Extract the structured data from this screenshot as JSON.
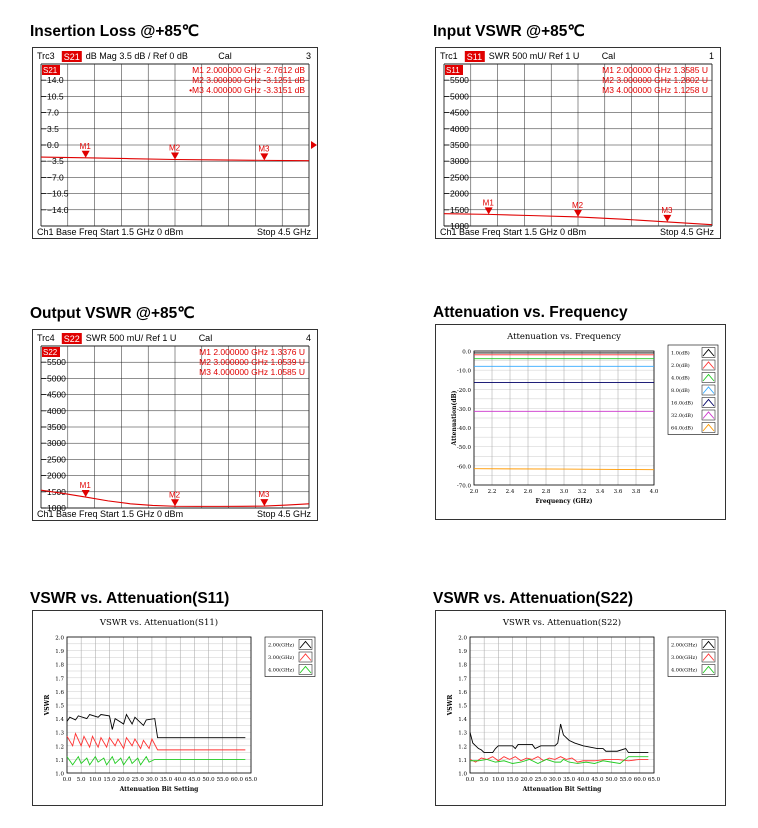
{
  "colors": {
    "trace": "#e00000",
    "grid": "#000000",
    "frame": "#333333"
  },
  "vna_panels": [
    {
      "title": "Insertion Loss @+85℃",
      "trc": "Trc3",
      "param": "S21",
      "scale": "dB Mag  3.5 dB / Ref 0 dB",
      "cal": "Cal",
      "ch_num": "3",
      "tag": "S21",
      "yticks": [
        "14.0",
        "10.5",
        "7.0",
        "3.5",
        "0.0",
        "−3.5",
        "−7.0",
        "−10.5",
        "−14.0"
      ],
      "footer_left": "Ch1  Base Freq  Start  1.5 GHz   0 dBm",
      "footer_right": "Stop  4.5 GHz",
      "markers": [
        {
          "label": "M1",
          "readout": "M1  2.000000  GHz  -2.7612  dB",
          "x_ghz": 2.0,
          "y_value": -2.76
        },
        {
          "label": "M2",
          "readout": "M2  3.000000  GHz  -3.1251  dB",
          "x_ghz": 3.0,
          "y_value": -3.13
        },
        {
          "label": "M3",
          "readout": "•M3  4.000000  GHz  -3.3151  dB",
          "x_ghz": 4.0,
          "y_value": -3.32
        }
      ]
    },
    {
      "title": "Input VSWR @+85℃",
      "trc": "Trc1",
      "param": "S11",
      "scale": "SWR  500 mU/  Ref 1 U",
      "cal": "Cal",
      "ch_num": "1",
      "tag": "S11",
      "yticks": [
        "5500",
        "5000",
        "4500",
        "4000",
        "3500",
        "3000",
        "2500",
        "2000",
        "1500",
        "1000"
      ],
      "footer_left": "Ch1  Base Freq  Start  1.5 GHz   0 dBm",
      "footer_right": "Stop  4.5 GHz",
      "markers": [
        {
          "label": "M1",
          "readout": "M1  2.000000  GHz   1.3585  U",
          "x_ghz": 2.0,
          "y_value": 1.3585
        },
        {
          "label": "M2",
          "readout": "M2  3.000000  GHz   1.2802  U",
          "x_ghz": 3.0,
          "y_value": 1.2802
        },
        {
          "label": "M3",
          "readout": "M3  4.000000  GHz   1.1258  U",
          "x_ghz": 4.0,
          "y_value": 1.1258
        }
      ]
    },
    {
      "title": "Output VSWR @+85℃",
      "trc": "Trc4",
      "param": "S22",
      "scale": "SWR  500 mU/  Ref 1 U",
      "cal": "Cal",
      "ch_num": "4",
      "tag": "S22",
      "yticks": [
        "5500",
        "5000",
        "4500",
        "4000",
        "3500",
        "3000",
        "2500",
        "2000",
        "1500",
        "1000"
      ],
      "footer_left": "Ch1  Base Freq  Start  1.5 GHz   0 dBm",
      "footer_right": "Stop  4.5 GHz",
      "markers": [
        {
          "label": "M1",
          "readout": "M1  2.000000  GHz   1.3376  U",
          "x_ghz": 2.0,
          "y_value": 1.3376
        },
        {
          "label": "M2",
          "readout": "M2  3.000000  GHz   1.0539  U",
          "x_ghz": 3.0,
          "y_value": 1.0539
        },
        {
          "label": "M3",
          "readout": "M3  4.000000  GHz   1.0585  U",
          "x_ghz": 4.0,
          "y_value": 1.0585
        }
      ]
    }
  ],
  "chart_data": [
    {
      "type": "line",
      "title": "Insertion Loss @+85℃",
      "xlim": [
        1.5,
        4.5
      ],
      "ylim": [
        -17.5,
        17.5
      ],
      "series": [
        {
          "name": "S21",
          "x": [
            1.5,
            2.0,
            2.5,
            3.0,
            3.5,
            4.0,
            4.5
          ],
          "values": [
            -2.6,
            -2.76,
            -2.95,
            -3.13,
            -3.22,
            -3.32,
            -3.4
          ]
        }
      ]
    },
    {
      "type": "line",
      "title": "Input VSWR @+85℃",
      "xlim": [
        1.5,
        4.5
      ],
      "ylim": [
        1.0,
        6.0
      ],
      "series": [
        {
          "name": "S11",
          "x": [
            1.5,
            2.0,
            2.5,
            3.0,
            3.5,
            4.0,
            4.5
          ],
          "values": [
            1.38,
            1.3585,
            1.32,
            1.2802,
            1.21,
            1.1258,
            1.04
          ]
        }
      ]
    },
    {
      "type": "line",
      "title": "Output VSWR @+85℃",
      "xlim": [
        1.5,
        4.5
      ],
      "ylim": [
        1.0,
        6.0
      ],
      "series": [
        {
          "name": "S22",
          "x": [
            1.5,
            1.75,
            2.0,
            2.25,
            2.5,
            2.75,
            3.0,
            3.25,
            3.5,
            3.75,
            4.0,
            4.25,
            4.5
          ],
          "values": [
            1.55,
            1.45,
            1.3376,
            1.22,
            1.13,
            1.08,
            1.0539,
            1.05,
            1.05,
            1.052,
            1.0585,
            1.09,
            1.13
          ]
        }
      ]
    },
    {
      "type": "line",
      "title": "Attenuation vs. Frequency",
      "section_title": "Attenuation vs. Frequency",
      "xlabel": "Frequency (GHz)",
      "ylabel": "Attenuation(dB)",
      "xlim": [
        2.0,
        4.0
      ],
      "ylim": [
        -70.0,
        0.0
      ],
      "xticks": [
        "2.0",
        "2.2",
        "2.4",
        "2.6",
        "2.8",
        "3.0",
        "3.2",
        "3.4",
        "3.6",
        "3.8",
        "4.0"
      ],
      "yticks": [
        "0.0",
        "-10.0",
        "-20.0",
        "-30.0",
        "-40.0",
        "-50.0",
        "-60.0",
        "-70.0"
      ],
      "series": [
        {
          "name": "1.0(dB)",
          "color": "#000000",
          "x": [
            2.0,
            3.0,
            4.0
          ],
          "values": [
            -1.0,
            -1.0,
            -1.0
          ]
        },
        {
          "name": "2.0(dB)",
          "color": "#ff3333",
          "x": [
            2.0,
            3.0,
            4.0
          ],
          "values": [
            -2.0,
            -2.0,
            -2.0
          ]
        },
        {
          "name": "4.0(dB)",
          "color": "#22cc22",
          "x": [
            2.0,
            3.0,
            4.0
          ],
          "values": [
            -4.0,
            -4.0,
            -4.0
          ]
        },
        {
          "name": "8.0(dB)",
          "color": "#33aaff",
          "x": [
            2.0,
            3.0,
            4.0
          ],
          "values": [
            -8.0,
            -8.0,
            -8.0
          ]
        },
        {
          "name": "16.0(dB)",
          "color": "#000066",
          "x": [
            2.0,
            3.0,
            4.0
          ],
          "values": [
            -16.5,
            -16.5,
            -16.5
          ]
        },
        {
          "name": "32.0(dB)",
          "color": "#cc33cc",
          "x": [
            2.0,
            3.0,
            4.0
          ],
          "values": [
            -31.5,
            -31.5,
            -31.5
          ]
        },
        {
          "name": "64.0(dB)",
          "color": "#ff9900",
          "x": [
            2.0,
            3.0,
            4.0
          ],
          "values": [
            -61.5,
            -61.7,
            -62.0
          ]
        }
      ]
    },
    {
      "type": "line",
      "title": "VSWR vs. Attenuation(S11)",
      "section_title": "VSWR vs. Attenuation(S11)",
      "xlabel": "Attenuation Bit Setting",
      "ylabel": "VSWR",
      "xlim": [
        0,
        65
      ],
      "ylim": [
        1.0,
        2.0
      ],
      "xticks": [
        "0.0",
        "5.0",
        "10.0",
        "15.0",
        "20.0",
        "25.0",
        "30.0",
        "35.0",
        "40.0",
        "45.0",
        "50.0",
        "55.0",
        "60.0",
        "65.0"
      ],
      "yticks": [
        "2.0",
        "1.9",
        "1.8",
        "1.7",
        "1.6",
        "1.5",
        "1.4",
        "1.3",
        "1.2",
        "1.1",
        "1.0"
      ],
      "series": [
        {
          "name": "2.00(GHz)",
          "color": "#000000",
          "x": [
            0,
            1,
            3,
            4,
            7,
            8,
            11,
            12,
            15,
            16,
            17,
            20,
            21,
            23,
            24,
            27,
            28,
            31,
            32,
            35,
            40,
            45,
            50,
            55,
            60,
            63
          ],
          "values": [
            1.38,
            1.41,
            1.39,
            1.42,
            1.4,
            1.43,
            1.41,
            1.43,
            1.42,
            1.32,
            1.4,
            1.36,
            1.43,
            1.36,
            1.41,
            1.35,
            1.39,
            1.4,
            1.26,
            1.26,
            1.26,
            1.26,
            1.26,
            1.26,
            1.26,
            1.26
          ]
        },
        {
          "name": "3.00(GHz)",
          "color": "#ff3333",
          "x": [
            0,
            2,
            3,
            5,
            6,
            8,
            9,
            11,
            12,
            14,
            15,
            17,
            18,
            20,
            21,
            23,
            24,
            26,
            27,
            29,
            30,
            32,
            35,
            40,
            45,
            50,
            55,
            60,
            63
          ],
          "values": [
            1.27,
            1.2,
            1.29,
            1.2,
            1.27,
            1.19,
            1.27,
            1.19,
            1.26,
            1.19,
            1.26,
            1.2,
            1.25,
            1.18,
            1.26,
            1.2,
            1.25,
            1.18,
            1.24,
            1.18,
            1.25,
            1.17,
            1.17,
            1.17,
            1.17,
            1.17,
            1.17,
            1.17,
            1.17
          ]
        },
        {
          "name": "4.00(GHz)",
          "color": "#22cc22",
          "x": [
            0,
            1,
            2,
            4,
            5,
            7,
            8,
            10,
            11,
            13,
            14,
            16,
            17,
            19,
            20,
            22,
            23,
            25,
            26,
            28,
            29,
            31,
            32,
            35,
            40,
            45,
            50,
            55,
            60,
            63
          ],
          "values": [
            1.12,
            1.09,
            1.06,
            1.12,
            1.07,
            1.11,
            1.06,
            1.12,
            1.08,
            1.11,
            1.06,
            1.12,
            1.07,
            1.11,
            1.06,
            1.12,
            1.07,
            1.11,
            1.06,
            1.12,
            1.08,
            1.1,
            1.1,
            1.1,
            1.1,
            1.1,
            1.1,
            1.1,
            1.1,
            1.1
          ]
        }
      ]
    },
    {
      "type": "line",
      "title": "VSWR vs. Attenuation(S22)",
      "section_title": "VSWR vs. Attenuation(S22)",
      "xlabel": "Attenuation Bit Setting",
      "ylabel": "VSWR",
      "xlim": [
        0,
        65
      ],
      "ylim": [
        1.0,
        2.0
      ],
      "xticks": [
        "0.0",
        "5.0",
        "10.0",
        "15.0",
        "20.0",
        "25.0",
        "30.0",
        "35.0",
        "40.0",
        "45.0",
        "50.0",
        "55.0",
        "60.0",
        "65.0"
      ],
      "yticks": [
        "2.0",
        "1.9",
        "1.8",
        "1.7",
        "1.6",
        "1.5",
        "1.4",
        "1.3",
        "1.2",
        "1.1",
        "1.0"
      ],
      "series": [
        {
          "name": "2.00(GHz)",
          "color": "#000000",
          "x": [
            0,
            1,
            2,
            3,
            4,
            5,
            8,
            9,
            10,
            15,
            16,
            17,
            20,
            22,
            23,
            25,
            30,
            31,
            32,
            33,
            35,
            37,
            40,
            45,
            47,
            48,
            52,
            55,
            56,
            60,
            63
          ],
          "values": [
            1.3,
            1.22,
            1.2,
            1.18,
            1.17,
            1.15,
            1.15,
            1.18,
            1.2,
            1.2,
            1.18,
            1.21,
            1.21,
            1.21,
            1.18,
            1.2,
            1.2,
            1.22,
            1.36,
            1.28,
            1.24,
            1.22,
            1.2,
            1.18,
            1.18,
            1.16,
            1.16,
            1.18,
            1.15,
            1.15,
            1.15
          ]
        },
        {
          "name": "3.00(GHz)",
          "color": "#ff3333",
          "x": [
            0,
            2,
            4,
            6,
            8,
            10,
            12,
            14,
            16,
            18,
            20,
            22,
            24,
            26,
            28,
            30,
            32,
            34,
            36,
            38,
            40,
            44,
            48,
            52,
            56,
            60,
            63
          ],
          "values": [
            1.1,
            1.08,
            1.11,
            1.1,
            1.12,
            1.09,
            1.12,
            1.1,
            1.12,
            1.09,
            1.11,
            1.1,
            1.12,
            1.09,
            1.11,
            1.1,
            1.12,
            1.1,
            1.11,
            1.08,
            1.09,
            1.09,
            1.1,
            1.1,
            1.09,
            1.1,
            1.1
          ]
        },
        {
          "name": "4.00(GHz)",
          "color": "#22cc22",
          "x": [
            0,
            3,
            6,
            9,
            12,
            15,
            18,
            21,
            24,
            27,
            30,
            32,
            33,
            35,
            38,
            41,
            44,
            47,
            50,
            53,
            56,
            60,
            63
          ],
          "values": [
            1.09,
            1.09,
            1.1,
            1.08,
            1.09,
            1.07,
            1.08,
            1.1,
            1.07,
            1.1,
            1.08,
            1.08,
            1.1,
            1.08,
            1.07,
            1.08,
            1.07,
            1.09,
            1.08,
            1.07,
            1.12,
            1.12,
            1.12
          ]
        }
      ]
    }
  ]
}
